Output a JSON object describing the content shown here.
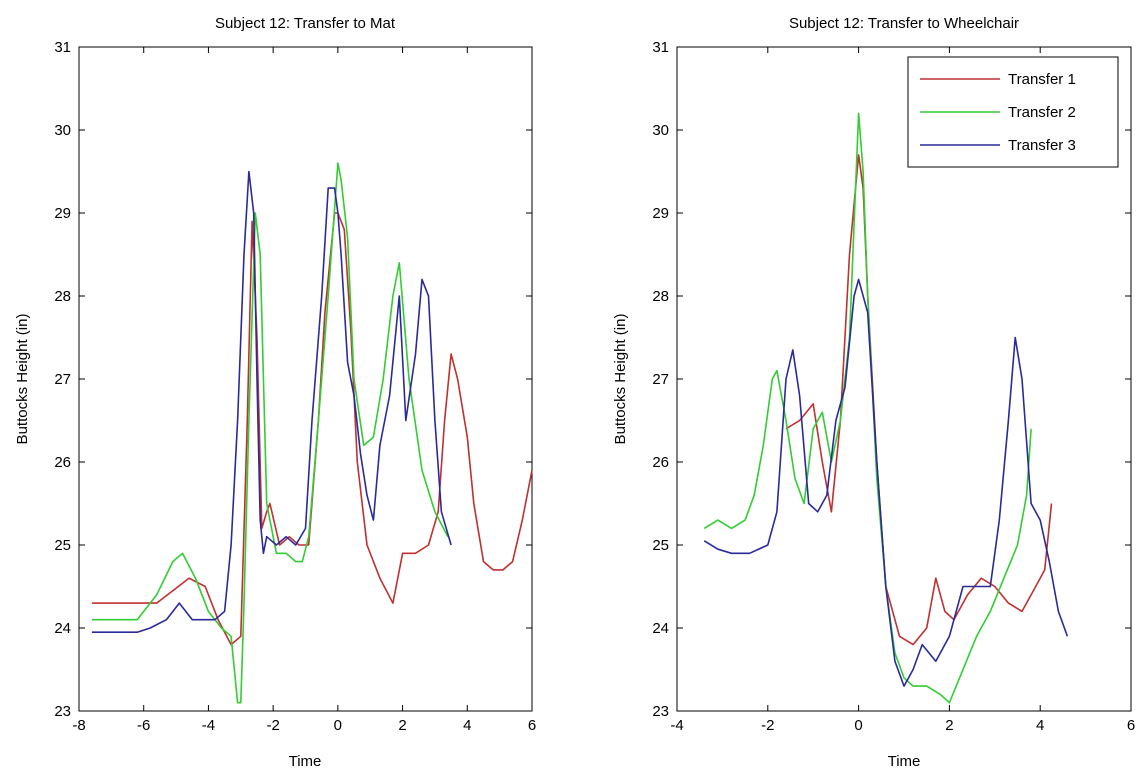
{
  "chart_data": [
    {
      "type": "line",
      "title": "Subject 12: Transfer to Mat",
      "xlabel": "Time",
      "ylabel": "Buttocks Height (in)",
      "xlim": [
        -8,
        6
      ],
      "ylim": [
        23,
        31
      ],
      "xticks": [
        "-8",
        "-6",
        "-4",
        "-2",
        "0",
        "2",
        "4",
        "6"
      ],
      "yticks": [
        "23",
        "24",
        "25",
        "26",
        "27",
        "28",
        "29",
        "30",
        "31"
      ],
      "grid": false,
      "legend": null,
      "series": [
        {
          "color": "#c03030",
          "x": [
            -7.6,
            -6.5,
            -5.6,
            -4.6,
            -4.1,
            -3.7,
            -3.3,
            -3.0,
            -2.8,
            -2.65,
            -2.5,
            -2.35,
            -2.2,
            -2.1,
            -1.8,
            -1.5,
            -1.2,
            -0.9,
            -0.6,
            -0.4,
            -0.1,
            0.0,
            0.2,
            0.4,
            0.6,
            0.9,
            1.3,
            1.7,
            2.0,
            2.4,
            2.8,
            3.1,
            3.3,
            3.5,
            3.7,
            4.0,
            4.2,
            4.5,
            4.8,
            5.1,
            5.4,
            5.7,
            6.0
          ],
          "y": [
            24.3,
            24.3,
            24.3,
            24.6,
            24.5,
            24.1,
            23.8,
            23.9,
            26.5,
            28.9,
            27.5,
            25.2,
            25.4,
            25.5,
            25.0,
            25.1,
            25.0,
            25.0,
            26.5,
            27.8,
            29.0,
            29.0,
            28.8,
            27.6,
            26.0,
            25.0,
            24.6,
            24.3,
            24.9,
            24.9,
            25.0,
            25.4,
            26.5,
            27.3,
            27.0,
            26.3,
            25.5,
            24.8,
            24.7,
            24.7,
            24.8,
            25.3,
            25.9
          ]
        },
        {
          "color": "#33cc33",
          "x": [
            -7.6,
            -6.2,
            -5.6,
            -5.1,
            -4.8,
            -4.4,
            -4.0,
            -3.6,
            -3.3,
            -3.1,
            -3.0,
            -2.9,
            -2.75,
            -2.55,
            -2.4,
            -2.2,
            -1.9,
            -1.6,
            -1.3,
            -1.1,
            -0.9,
            -0.6,
            -0.3,
            0.0,
            0.1,
            0.3,
            0.5,
            0.8,
            1.1,
            1.4,
            1.7,
            1.9,
            2.2,
            2.6,
            3.0,
            3.4
          ],
          "y": [
            24.1,
            24.1,
            24.4,
            24.8,
            24.9,
            24.6,
            24.2,
            24.0,
            23.9,
            23.1,
            23.1,
            24.3,
            26.5,
            29.0,
            28.5,
            25.5,
            24.9,
            24.9,
            24.8,
            24.8,
            25.1,
            26.5,
            28.0,
            29.6,
            29.4,
            28.7,
            27.0,
            26.2,
            26.3,
            27.0,
            28.0,
            28.4,
            27.0,
            25.9,
            25.4,
            25.1
          ]
        },
        {
          "color": "#2a2a9a",
          "x": [
            -7.6,
            -6.2,
            -5.8,
            -5.3,
            -4.9,
            -4.5,
            -4.1,
            -3.8,
            -3.5,
            -3.3,
            -3.1,
            -2.9,
            -2.75,
            -2.6,
            -2.5,
            -2.4,
            -2.3,
            -2.2,
            -1.9,
            -1.6,
            -1.3,
            -1.0,
            -0.8,
            -0.5,
            -0.3,
            -0.1,
            0.0,
            0.1,
            0.3,
            0.5,
            0.7,
            0.9,
            1.1,
            1.3,
            1.6,
            1.9,
            2.1,
            2.4,
            2.6,
            2.8,
            3.0,
            3.2,
            3.5
          ],
          "y": [
            23.95,
            23.95,
            24.0,
            24.1,
            24.3,
            24.1,
            24.1,
            24.1,
            24.2,
            25.0,
            26.5,
            28.5,
            29.5,
            29.0,
            27.0,
            25.3,
            24.9,
            25.1,
            25.0,
            25.1,
            25.0,
            25.2,
            26.5,
            28.0,
            29.3,
            29.3,
            29.0,
            28.5,
            27.2,
            26.8,
            26.1,
            25.6,
            25.3,
            26.2,
            26.8,
            28.0,
            26.5,
            27.3,
            28.2,
            28.0,
            26.5,
            25.4,
            25.0
          ]
        }
      ]
    },
    {
      "type": "line",
      "title": "Subject 12: Transfer to Wheelchair",
      "xlabel": "Time",
      "ylabel": "Buttocks Height (in)",
      "xlim": [
        -4,
        6
      ],
      "ylim": [
        23,
        31
      ],
      "xticks": [
        "-4",
        "-2",
        "0",
        "2",
        "4",
        "6"
      ],
      "yticks": [
        "23",
        "24",
        "25",
        "26",
        "27",
        "28",
        "29",
        "30",
        "31"
      ],
      "grid": false,
      "legend": "top-right",
      "series": [
        {
          "name": "Transfer 1",
          "color": "#c03030",
          "x": [
            -1.6,
            -1.3,
            -1.0,
            -0.8,
            -0.6,
            -0.4,
            -0.2,
            0.0,
            0.1,
            0.2,
            0.4,
            0.6,
            0.9,
            1.2,
            1.5,
            1.7,
            1.9,
            2.1,
            2.4,
            2.7,
            3.0,
            3.3,
            3.6,
            3.9,
            4.1,
            4.25
          ],
          "y": [
            26.4,
            26.5,
            26.7,
            26.0,
            25.4,
            26.5,
            28.5,
            29.7,
            29.3,
            28.0,
            26.0,
            24.5,
            23.9,
            23.8,
            24.0,
            24.6,
            24.2,
            24.1,
            24.4,
            24.6,
            24.5,
            24.3,
            24.2,
            24.5,
            24.7,
            25.5
          ]
        },
        {
          "name": "Transfer 2",
          "color": "#33cc33",
          "x": [
            -3.4,
            -3.1,
            -2.8,
            -2.5,
            -2.3,
            -2.1,
            -1.9,
            -1.8,
            -1.6,
            -1.4,
            -1.2,
            -1.0,
            -0.8,
            -0.6,
            -0.4,
            -0.2,
            0.0,
            0.1,
            0.2,
            0.4,
            0.6,
            0.8,
            1.0,
            1.2,
            1.5,
            1.8,
            2.0,
            2.3,
            2.6,
            2.9,
            3.2,
            3.5,
            3.7,
            3.8
          ],
          "y": [
            25.2,
            25.3,
            25.2,
            25.3,
            25.6,
            26.2,
            27.0,
            27.1,
            26.5,
            25.8,
            25.5,
            26.4,
            26.6,
            26.0,
            26.5,
            27.5,
            30.2,
            29.5,
            28.0,
            25.8,
            24.5,
            23.7,
            23.4,
            23.3,
            23.3,
            23.2,
            23.1,
            23.5,
            23.9,
            24.2,
            24.6,
            25.0,
            25.6,
            26.4
          ]
        },
        {
          "name": "Transfer 3",
          "color": "#2a2a9a",
          "x": [
            -3.4,
            -3.1,
            -2.8,
            -2.4,
            -2.0,
            -1.8,
            -1.6,
            -1.45,
            -1.3,
            -1.1,
            -0.9,
            -0.7,
            -0.5,
            -0.3,
            -0.1,
            0.0,
            0.2,
            0.4,
            0.6,
            0.8,
            1.0,
            1.2,
            1.4,
            1.7,
            2.0,
            2.3,
            2.6,
            2.9,
            3.1,
            3.3,
            3.45,
            3.6,
            3.8,
            4.0,
            4.2,
            4.4,
            4.6
          ],
          "y": [
            25.05,
            24.95,
            24.9,
            24.9,
            25.0,
            25.4,
            27.0,
            27.35,
            26.8,
            25.5,
            25.4,
            25.6,
            26.5,
            26.9,
            28.0,
            28.2,
            27.8,
            26.0,
            24.5,
            23.6,
            23.3,
            23.5,
            23.8,
            23.6,
            23.9,
            24.5,
            24.5,
            24.5,
            25.3,
            26.5,
            27.5,
            27.0,
            25.5,
            25.3,
            24.8,
            24.2,
            23.9
          ]
        }
      ]
    }
  ]
}
